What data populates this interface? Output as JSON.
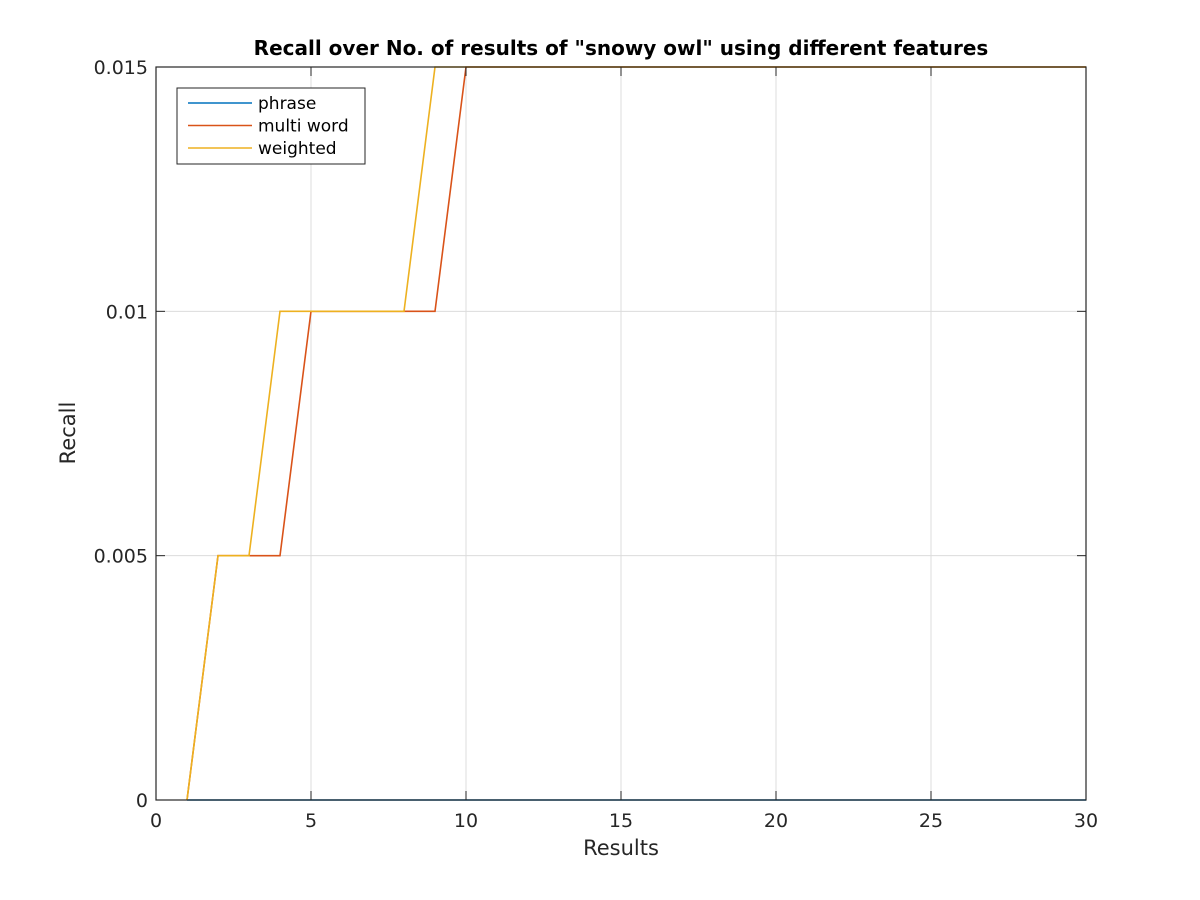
{
  "chart_data": {
    "type": "line",
    "title": "Recall over No. of results of \"snowy owl\" using different features",
    "xlabel": "Results",
    "ylabel": "Recall",
    "xlim": [
      0,
      30
    ],
    "ylim": [
      0,
      0.015
    ],
    "xticks": [
      0,
      5,
      10,
      15,
      20,
      25,
      30
    ],
    "xtick_labels": [
      "0",
      "5",
      "10",
      "15",
      "20",
      "25",
      "30"
    ],
    "yticks": [
      0,
      0.005,
      0.01,
      0.015
    ],
    "ytick_labels": [
      "0",
      "0.005",
      "0.01",
      "0.015"
    ],
    "grid": true,
    "legend_position": "top-left",
    "series": [
      {
        "name": "phrase",
        "color": "#0072BD",
        "x": [
          1,
          30
        ],
        "y": [
          0,
          0
        ]
      },
      {
        "name": "multi word",
        "color": "#D95319",
        "x": [
          1,
          2,
          3,
          4,
          5,
          6,
          7,
          8,
          9,
          10,
          30
        ],
        "y": [
          0,
          0.005,
          0.005,
          0.005,
          0.01,
          0.01,
          0.01,
          0.01,
          0.01,
          0.015,
          0.015
        ]
      },
      {
        "name": "weighted",
        "color": "#EDB120",
        "x": [
          1,
          2,
          3,
          4,
          5,
          6,
          7,
          8,
          9,
          10,
          30
        ],
        "y": [
          0,
          0.005,
          0.005,
          0.01,
          0.01,
          0.01,
          0.01,
          0.01,
          0.015,
          0.015,
          0.015
        ]
      }
    ]
  }
}
